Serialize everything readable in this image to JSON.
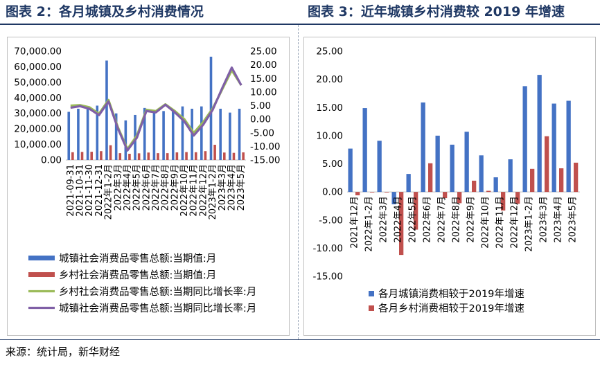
{
  "left_title": "图表 2：各月城镇及乡村消费情况",
  "right_title": "图表 3：近年城镇乡村消费较 2019 年增速",
  "source": "来源：统计局，新华财经",
  "chart_data": [
    {
      "type": "bar",
      "categories": [
        "2021-09-31",
        "2021-10-31",
        "2021-11-30",
        "2021-12-31",
        "2022年1-2月",
        "2022年3月",
        "2022年4月",
        "2022年5月",
        "2022年6月",
        "2022年7月",
        "2022年8月",
        "2022年9月",
        "2022年10月",
        "2022年11月",
        "2022年12月",
        "2023年1-2月",
        "2023年3月",
        "2023年4月",
        "2023年5月"
      ],
      "y_ticks_left": [
        "0.00",
        "10,000.00",
        "20,000.00",
        "30,000.00",
        "40,000.00",
        "50,000.00",
        "60,000.00",
        "70,000.00"
      ],
      "y_ticks_right": [
        "-15.00",
        "-10.00",
        "-5.00",
        "0.00",
        "5.00",
        "10.00",
        "15.00",
        "20.00",
        "25.00"
      ],
      "ylim_left": [
        0,
        70000
      ],
      "ylim_right": [
        -15,
        25
      ],
      "series": [
        {
          "name": "城镇社会消费品零售总额:当期值:月",
          "axis": "left",
          "kind": "bar",
          "color": "#4472c4",
          "values": [
            31000,
            33000,
            33500,
            35000,
            64000,
            30000,
            25500,
            29000,
            33500,
            31000,
            31500,
            32000,
            34500,
            33000,
            34500,
            66500,
            33000,
            30500,
            33000
          ]
        },
        {
          "name": "乡村社会消费品零售总额:当期值:月",
          "axis": "left",
          "kind": "bar",
          "color": "#c0504d",
          "values": [
            5000,
            5200,
            5300,
            5700,
            9500,
            4400,
            4000,
            4300,
            4800,
            4400,
            4400,
            4900,
            5100,
            5000,
            5700,
            9800,
            4800,
            4600,
            4900
          ]
        },
        {
          "name": "乡村社会消费品零售总额:当期同比增长率:月",
          "axis": "right",
          "kind": "line",
          "color": "#9bbb59",
          "values": [
            5.0,
            5.2,
            4.4,
            2.0,
            7.1,
            -3.0,
            -11.0,
            -6.0,
            3.5,
            3.0,
            5.5,
            3.0,
            0.0,
            -5.0,
            -1.0,
            4.0,
            11.0,
            18.0,
            12.5
          ]
        },
        {
          "name": "城镇社会消费品零售总额:当期同比增长率:月",
          "axis": "right",
          "kind": "line",
          "color": "#7f5fa6",
          "values": [
            4.2,
            4.8,
            3.8,
            1.5,
            6.5,
            -3.5,
            -11.5,
            -6.8,
            3.0,
            2.5,
            5.3,
            2.5,
            -0.8,
            -6.0,
            -2.0,
            3.5,
            11.5,
            19.0,
            12.5
          ]
        }
      ],
      "legend_position": "bottom"
    },
    {
      "type": "bar",
      "categories": [
        "2021年12月",
        "2022年1-2月",
        "2022年3月",
        "2022年4月",
        "2022年5月",
        "2022年6月",
        "2022年7月",
        "2022年8月",
        "2022年9月",
        "2022年10月",
        "2022年11月",
        "2022年12月",
        "2023年1-2月",
        "2023年3月",
        "2023年4月",
        "2023年5月"
      ],
      "y_ticks": [
        "-15.00",
        "-10.00",
        "-5.00",
        "0.00",
        "5.00",
        "10.00",
        "15.00",
        "20.00",
        "25.00"
      ],
      "ylim": [
        -15,
        25
      ],
      "series": [
        {
          "name": "各月城镇消费相较于2019年增速",
          "color": "#4472c4",
          "values": [
            7.7,
            14.9,
            9.1,
            -2.2,
            3.2,
            15.9,
            10.0,
            8.4,
            10.7,
            6.5,
            2.6,
            5.8,
            18.8,
            20.8,
            15.7,
            16.2
          ]
        },
        {
          "name": "各月乡村消费相较于2019年增速",
          "color": "#c0504d",
          "values": [
            -0.6,
            -0.1,
            -0.1,
            -11.2,
            -6.7,
            5.1,
            -1.1,
            -2.0,
            2.0,
            0.2,
            -3.3,
            -2.1,
            4.1,
            9.9,
            4.2,
            5.2
          ]
        }
      ],
      "legend_position": "bottom"
    }
  ]
}
